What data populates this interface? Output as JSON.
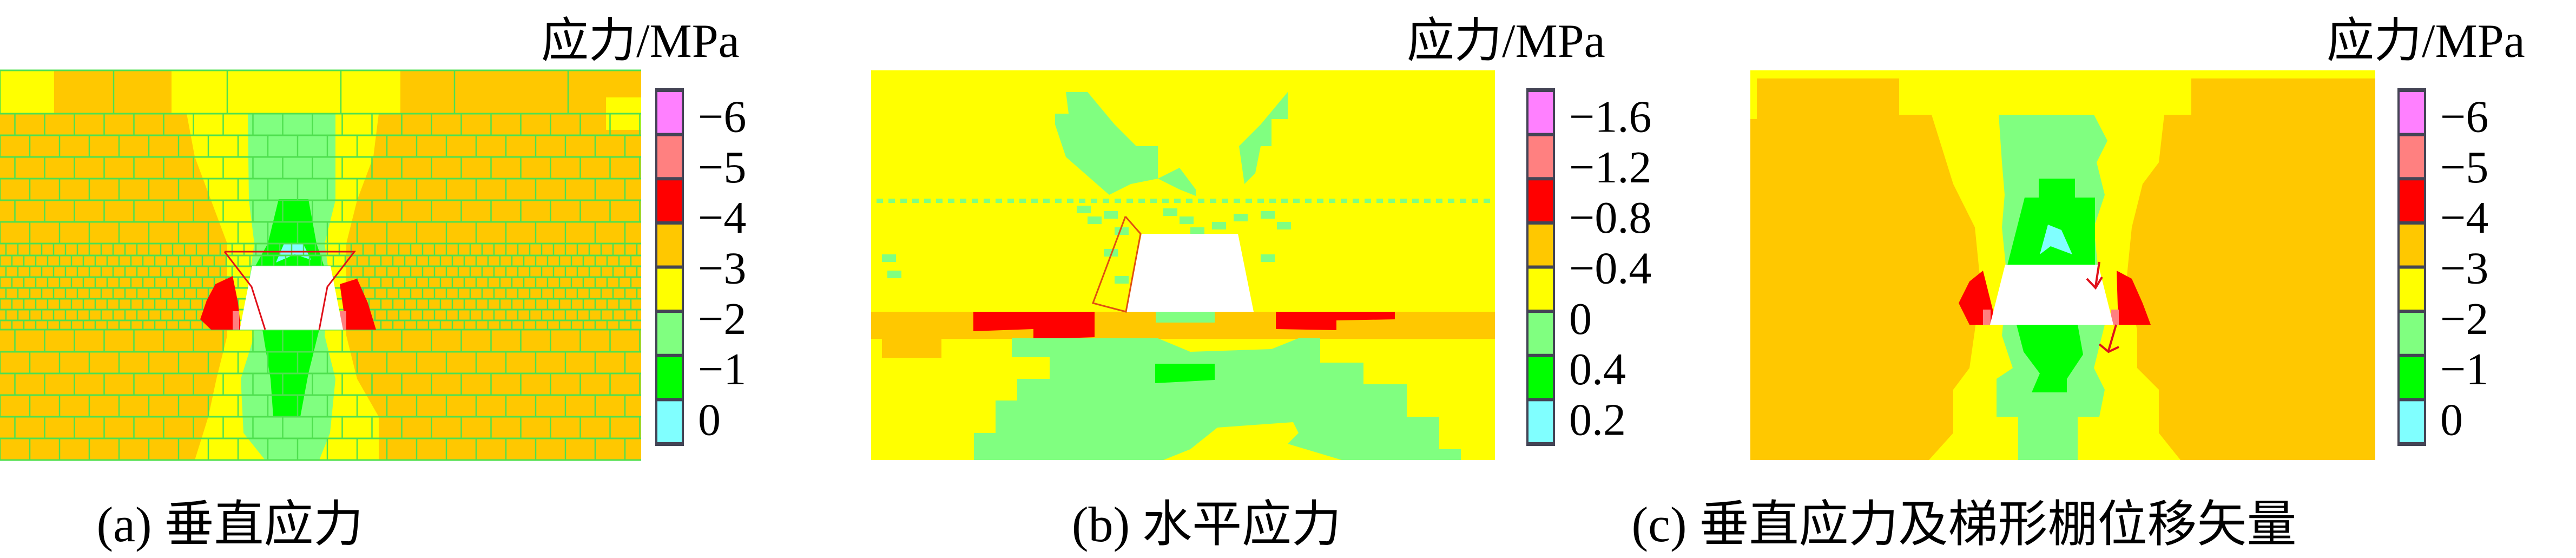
{
  "colors": {
    "level_1": "#ff80ff",
    "level_2": "#ff8080",
    "level_3": "#ff0000",
    "level_4": "#ffc800",
    "level_5": "#ffff00",
    "level_6": "#80ff80",
    "level_7": "#00ff00",
    "level_8": "#80ffff",
    "mesh_line": "#4fe04f",
    "opening": "#ffffff",
    "arrow": "#e0101a"
  },
  "panels": [
    {
      "caption": "(a) 垂直应力",
      "legend_title": "应力/MPa",
      "legend_labels": [
        "−6",
        "−5",
        "−4",
        "−3",
        "−2",
        "−1",
        "0"
      ]
    },
    {
      "caption": "(b) 水平应力",
      "legend_title": "应力/MPa",
      "legend_labels": [
        "−1.6",
        "−1.2",
        "−0.8",
        "−0.4",
        "0",
        "0.4",
        "0.2"
      ]
    },
    {
      "caption": "(c) 垂直应力及梯形棚位移矢量",
      "legend_title": "应力/MPa",
      "legend_labels": [
        "−6",
        "−5",
        "−4",
        "−3",
        "−2",
        "−1",
        "0"
      ]
    }
  ]
}
